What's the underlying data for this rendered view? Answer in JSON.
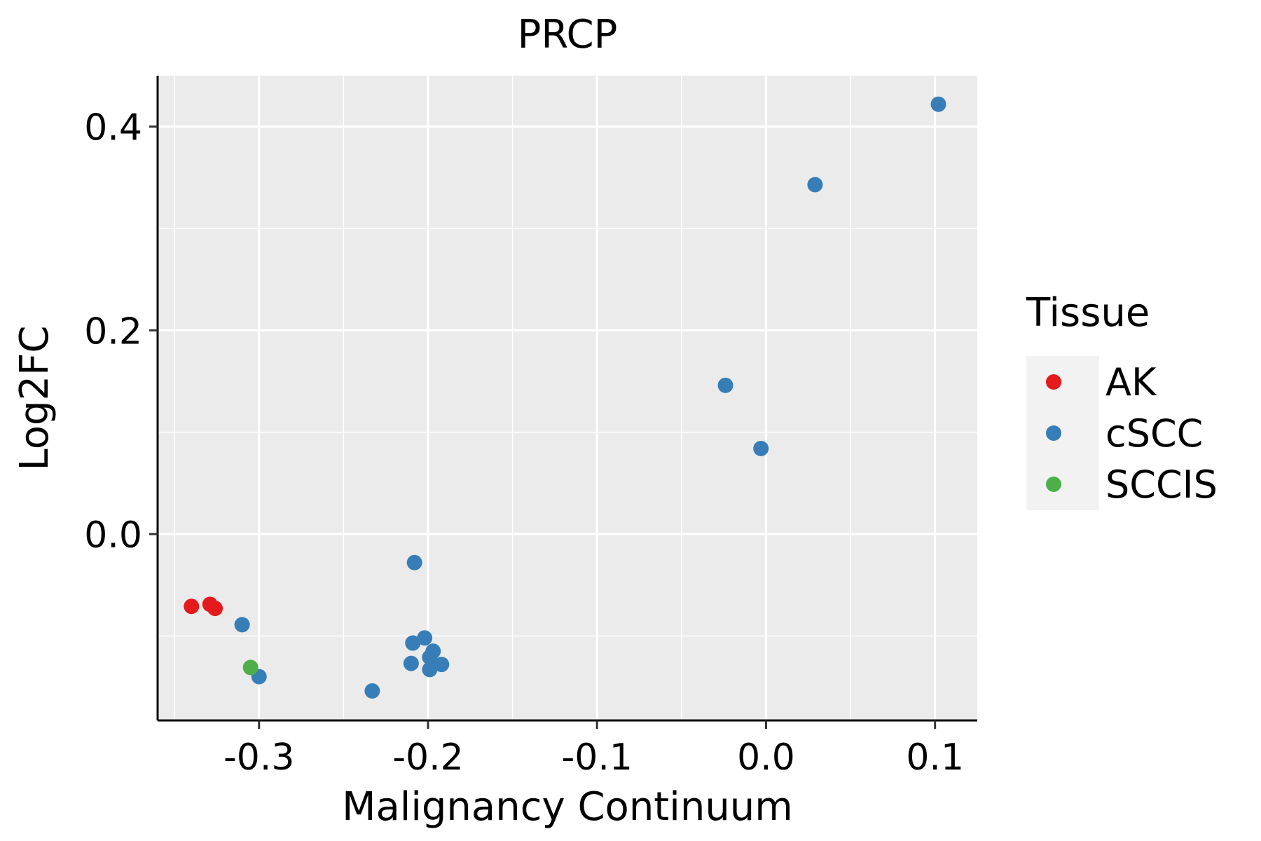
{
  "chart_data": {
    "type": "scatter",
    "title": "PRCP",
    "xlabel": "Malignancy Continuum",
    "ylabel": "Log2FC",
    "xlim": [
      -0.36,
      0.125
    ],
    "ylim": [
      -0.183,
      0.45
    ],
    "x_ticks": [
      -0.3,
      -0.2,
      -0.1,
      0.0,
      0.1
    ],
    "x_tick_labels": [
      "-0.3",
      "-0.2",
      "-0.1",
      "0.0",
      "0.1"
    ],
    "y_ticks": [
      0.0,
      0.2,
      0.4
    ],
    "y_tick_labels": [
      "0.0",
      "0.2",
      "0.4"
    ],
    "grid": true,
    "legend": {
      "title": "Tissue",
      "position": "right",
      "entries": [
        {
          "label": "AK",
          "color": "#E41A1C"
        },
        {
          "label": "cSCC",
          "color": "#377EB8"
        },
        {
          "label": "SCCIS",
          "color": "#4DAF4A"
        }
      ]
    },
    "series": [
      {
        "name": "AK",
        "color": "#E41A1C",
        "points": [
          {
            "x": -0.34,
            "y": -0.071
          },
          {
            "x": -0.329,
            "y": -0.069
          },
          {
            "x": -0.326,
            "y": -0.073
          }
        ]
      },
      {
        "name": "cSCC",
        "color": "#377EB8",
        "points": [
          {
            "x": 0.102,
            "y": 0.422
          },
          {
            "x": 0.029,
            "y": 0.343
          },
          {
            "x": -0.024,
            "y": 0.146
          },
          {
            "x": -0.003,
            "y": 0.084
          },
          {
            "x": -0.208,
            "y": -0.028
          },
          {
            "x": -0.31,
            "y": -0.089
          },
          {
            "x": -0.3,
            "y": -0.14
          },
          {
            "x": -0.233,
            "y": -0.154
          },
          {
            "x": -0.202,
            "y": -0.102
          },
          {
            "x": -0.209,
            "y": -0.107
          },
          {
            "x": -0.197,
            "y": -0.115
          },
          {
            "x": -0.199,
            "y": -0.121
          },
          {
            "x": -0.21,
            "y": -0.127
          },
          {
            "x": -0.192,
            "y": -0.128
          },
          {
            "x": -0.199,
            "y": -0.133
          }
        ]
      },
      {
        "name": "SCCIS",
        "color": "#4DAF4A",
        "points": [
          {
            "x": -0.305,
            "y": -0.131
          }
        ]
      }
    ]
  }
}
